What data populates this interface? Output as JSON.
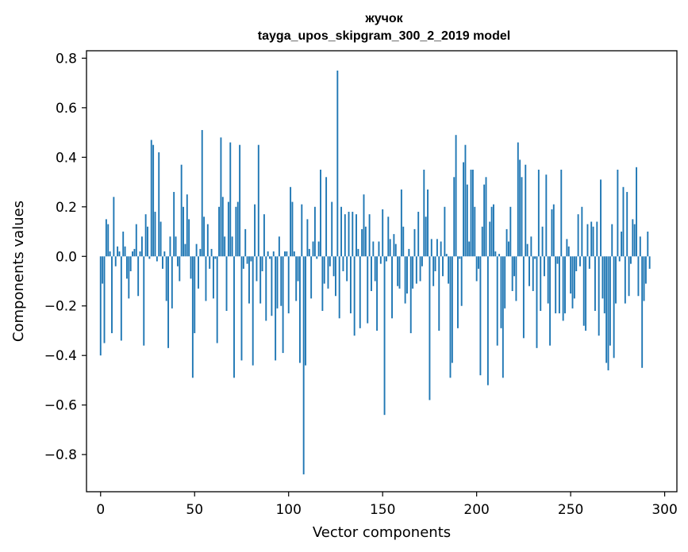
{
  "chart_data": {
    "type": "bar",
    "title": "жучок",
    "subtitle": "tayga_upos_skipgram_300_2_2019 model",
    "xlabel": "Vector components",
    "ylabel": "Components values",
    "xlim": [
      -7.5,
      306.5
    ],
    "ylim": [
      -0.95,
      0.83
    ],
    "xticks": [
      0,
      50,
      100,
      150,
      200,
      250,
      300
    ],
    "yticks": [
      -0.8,
      -0.6,
      -0.4,
      -0.2,
      0.0,
      0.2,
      0.4,
      0.6,
      0.8
    ],
    "ytick_labels": [
      "−0.8",
      "−0.6",
      "−0.4",
      "−0.2",
      "0.0",
      "0.2",
      "0.4",
      "0.6",
      "0.8"
    ],
    "bar_color": "#1f77b4",
    "x_start": 0,
    "values": [
      -0.4,
      -0.11,
      -0.35,
      0.15,
      0.13,
      0.02,
      -0.31,
      0.24,
      -0.04,
      0.04,
      0.02,
      -0.34,
      0.1,
      0.04,
      -0.09,
      -0.17,
      -0.06,
      0.02,
      0.03,
      0.13,
      -0.16,
      0.02,
      0.08,
      -0.36,
      0.17,
      0.12,
      -0.01,
      0.47,
      0.45,
      0.18,
      -0.02,
      0.42,
      0.14,
      -0.05,
      0.02,
      -0.18,
      -0.37,
      0.08,
      -0.21,
      0.26,
      0.08,
      -0.04,
      -0.1,
      0.37,
      0.2,
      0.05,
      0.25,
      0.15,
      -0.09,
      -0.49,
      -0.31,
      0.05,
      -0.13,
      0.03,
      0.51,
      0.16,
      -0.18,
      0.13,
      -0.05,
      0.03,
      -0.17,
      -0.01,
      -0.35,
      0.2,
      0.48,
      0.24,
      0.08,
      -0.22,
      0.22,
      0.46,
      0.08,
      -0.49,
      0.2,
      0.22,
      0.45,
      -0.42,
      -0.05,
      0.11,
      -0.03,
      -0.19,
      -0.02,
      -0.44,
      0.21,
      -0.1,
      0.45,
      -0.19,
      -0.06,
      0.17,
      -0.26,
      0.02,
      -0.01,
      -0.24,
      0.02,
      -0.42,
      -0.21,
      0.08,
      -0.2,
      -0.39,
      0.02,
      0.02,
      -0.23,
      0.28,
      0.22,
      0.02,
      -0.18,
      -0.1,
      -0.43,
      0.21,
      -0.88,
      -0.44,
      0.15,
      0.03,
      -0.17,
      0.06,
      0.2,
      -0.01,
      0.06,
      0.35,
      -0.22,
      -0.11,
      0.32,
      -0.13,
      -0.04,
      0.22,
      -0.08,
      -0.16,
      0.75,
      -0.25,
      0.2,
      -0.06,
      0.17,
      -0.1,
      0.18,
      -0.23,
      0.18,
      -0.32,
      0.17,
      0.03,
      -0.29,
      0.11,
      0.25,
      0.12,
      -0.27,
      0.17,
      -0.14,
      0.06,
      -0.1,
      -0.3,
      0.06,
      -0.03,
      0.19,
      -0.64,
      -0.02,
      0.16,
      0.07,
      -0.25,
      0.09,
      0.05,
      -0.12,
      -0.13,
      0.27,
      0.12,
      -0.19,
      -0.15,
      0.03,
      -0.31,
      -0.13,
      0.11,
      -0.11,
      0.18,
      -0.1,
      -0.04,
      0.35,
      0.16,
      0.27,
      -0.58,
      0.07,
      -0.12,
      -0.06,
      0.07,
      -0.3,
      0.06,
      -0.08,
      0.2,
      0.01,
      -0.11,
      -0.49,
      -0.43,
      0.32,
      0.49,
      -0.29,
      -0.01,
      -0.2,
      0.38,
      0.45,
      0.29,
      0.06,
      0.35,
      0.35,
      0.2,
      -0.1,
      -0.05,
      -0.48,
      0.12,
      0.29,
      0.32,
      -0.52,
      0.14,
      0.2,
      0.21,
      0.02,
      -0.36,
      0.01,
      -0.29,
      -0.49,
      -0.21,
      0.11,
      0.06,
      0.2,
      -0.14,
      -0.08,
      -0.18,
      0.46,
      0.39,
      0.32,
      -0.33,
      0.37,
      0.05,
      -0.12,
      0.08,
      -0.14,
      -0.01,
      -0.37,
      0.35,
      -0.22,
      0.12,
      -0.08,
      0.33,
      -0.19,
      -0.36,
      0.19,
      0.21,
      -0.23,
      -0.03,
      -0.23,
      0.35,
      -0.26,
      -0.23,
      0.07,
      0.04,
      -0.15,
      -0.21,
      -0.17,
      -0.06,
      0.17,
      -0.04,
      0.2,
      -0.28,
      -0.3,
      0.13,
      -0.05,
      0.14,
      0.12,
      -0.22,
      0.14,
      -0.32,
      0.31,
      -0.17,
      -0.23,
      -0.43,
      -0.46,
      -0.36,
      0.13,
      -0.41,
      -0.19,
      0.35,
      -0.02,
      0.1,
      0.28,
      -0.19,
      0.26,
      -0.16,
      -0.03,
      0.15,
      0.13,
      0.36,
      -0.16,
      0.08,
      -0.45,
      -0.18,
      -0.11,
      0.1,
      -0.05
    ]
  }
}
